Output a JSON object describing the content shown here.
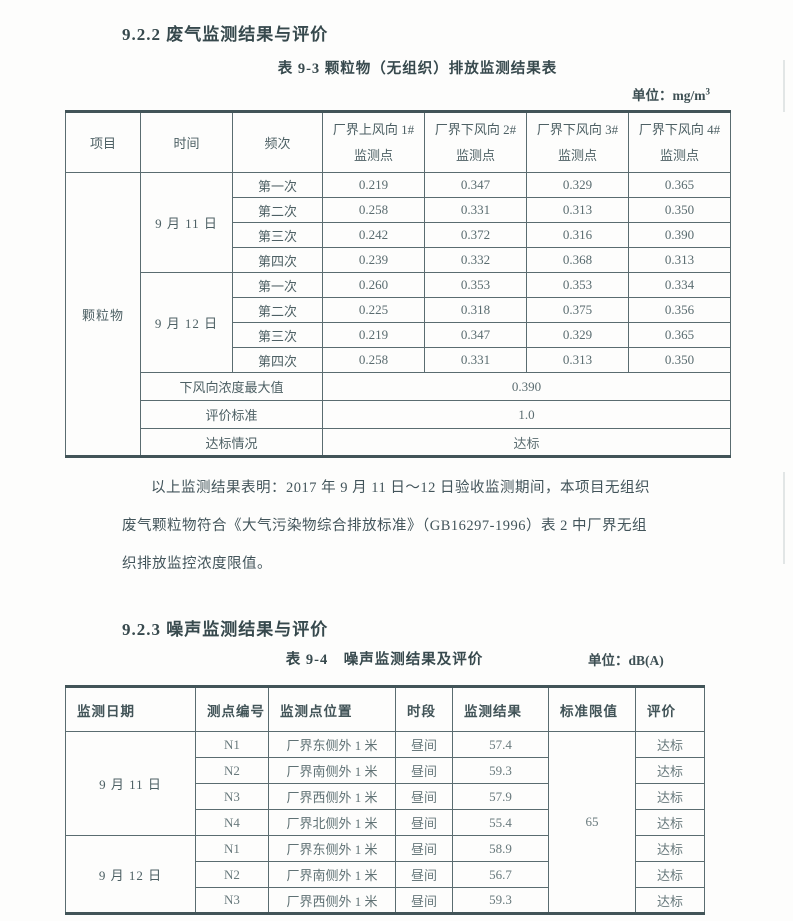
{
  "sections": {
    "s1_title": "9.2.2 废气监测结果与评价",
    "s2_title": "9.2.3 噪声监测结果与评价"
  },
  "table93": {
    "caption": "表 9-3 颗粒物（无组织）排放监测结果表",
    "unit_text": "单位：mg/m",
    "unit_sup": "3",
    "headers": [
      "项目",
      "时间",
      "频次"
    ],
    "point_headers": [
      [
        "厂界上风向 1#",
        "监测点"
      ],
      [
        "厂界下风向 2#",
        "监测点"
      ],
      [
        "厂界下风向 3#",
        "监测点"
      ],
      [
        "厂界下风向 4#",
        "监测点"
      ]
    ],
    "item_label": "颗粒物",
    "groups": [
      {
        "date": "9 月 11 日",
        "rows": [
          {
            "freq": "第一次",
            "values": [
              "0.219",
              "0.347",
              "0.329",
              "0.365"
            ]
          },
          {
            "freq": "第二次",
            "values": [
              "0.258",
              "0.331",
              "0.313",
              "0.350"
            ]
          },
          {
            "freq": "第三次",
            "values": [
              "0.242",
              "0.372",
              "0.316",
              "0.390"
            ]
          },
          {
            "freq": "第四次",
            "values": [
              "0.239",
              "0.332",
              "0.368",
              "0.313"
            ]
          }
        ]
      },
      {
        "date": "9 月 12 日",
        "rows": [
          {
            "freq": "第一次",
            "values": [
              "0.260",
              "0.353",
              "0.353",
              "0.334"
            ]
          },
          {
            "freq": "第二次",
            "values": [
              "0.225",
              "0.318",
              "0.375",
              "0.356"
            ]
          },
          {
            "freq": "第三次",
            "values": [
              "0.219",
              "0.347",
              "0.329",
              "0.365"
            ]
          },
          {
            "freq": "第四次",
            "values": [
              "0.258",
              "0.331",
              "0.313",
              "0.350"
            ]
          }
        ]
      }
    ],
    "summary": [
      {
        "label": "下风向浓度最大值",
        "value": "0.390"
      },
      {
        "label": "评价标准",
        "value": "1.0"
      },
      {
        "label": "达标情况",
        "value": "达标"
      }
    ]
  },
  "paragraph_lines": [
    "以上监测结果表明：2017 年 9 月 11 日～12 日验收监测期间，本项目无组织",
    "废气颗粒物符合《大气污染物综合排放标准》（GB16297-1996）表 2 中厂界无组",
    "织排放监控浓度限值。"
  ],
  "table94": {
    "caption": "表 9-4　噪声监测结果及评价",
    "unit": "单位：dB(A)",
    "headers": [
      "监测日期",
      "测点编号",
      "监测点位置",
      "时段",
      "监测结果",
      "标准限值",
      "评价"
    ],
    "standard_limit": "65",
    "groups": [
      {
        "date": "9 月 11 日",
        "rows": [
          {
            "point": "N1",
            "location": "厂界东侧外 1 米",
            "period": "昼间",
            "result": "57.4",
            "evaluation": "达标"
          },
          {
            "point": "N2",
            "location": "厂界南侧外 1 米",
            "period": "昼间",
            "result": "59.3",
            "evaluation": "达标"
          },
          {
            "point": "N3",
            "location": "厂界西侧外 1 米",
            "period": "昼间",
            "result": "57.9",
            "evaluation": "达标"
          },
          {
            "point": "N4",
            "location": "厂界北侧外 1 米",
            "period": "昼间",
            "result": "55.4",
            "evaluation": "达标"
          }
        ]
      },
      {
        "date": "9 月 12 日",
        "rows": [
          {
            "point": "N1",
            "location": "厂界东侧外 1 米",
            "period": "昼间",
            "result": "58.9",
            "evaluation": "达标"
          },
          {
            "point": "N2",
            "location": "厂界南侧外 1 米",
            "period": "昼间",
            "result": "56.7",
            "evaluation": "达标"
          },
          {
            "point": "N3",
            "location": "厂界西侧外 1 米",
            "period": "昼间",
            "result": "59.3",
            "evaluation": "达标"
          }
        ]
      }
    ]
  }
}
